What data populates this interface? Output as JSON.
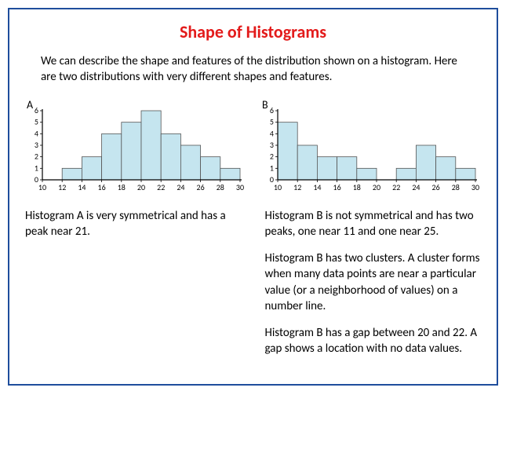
{
  "title": "Shape of Histograms",
  "title_color": "#e31b1b",
  "intro": "We can describe the shape and features of the distribution shown on a histogram. Here are two distributions with very different shapes and features.",
  "chart_common": {
    "y_max": 6,
    "y_ticks": [
      0,
      1,
      2,
      3,
      4,
      5,
      6
    ],
    "x_ticks": [
      10,
      12,
      14,
      16,
      18,
      20,
      22,
      24,
      26,
      28,
      30
    ],
    "bar_color": "#c5e5ef",
    "bar_stroke": "#555555",
    "axis_color": "#000000",
    "bg_color": "#ffffff",
    "label_fontsize": 10,
    "axis_fontsize": 10
  },
  "chartA": {
    "corner_label": "A",
    "x_start": 10,
    "bin_width": 2,
    "heights": [
      0,
      1,
      2,
      4,
      5,
      6,
      4,
      3,
      2,
      1
    ]
  },
  "chartB": {
    "corner_label": "B",
    "x_start": 10,
    "bin_width": 2,
    "heights": [
      5,
      3,
      2,
      2,
      1,
      0,
      1,
      3,
      2,
      1
    ]
  },
  "descA": {
    "p1": "Histogram A is very symmetrical and has a peak near 21."
  },
  "descB": {
    "p1": "Histogram B is not symmetrical and has two peaks, one near 11 and one near 25.",
    "p2": "Histogram B has two clusters. A cluster forms when many data points are near a particular value (or a neighborhood of values) on a number line.",
    "p3": "Histogram B has a gap between 20 and 22. A gap shows a location with no data values."
  }
}
